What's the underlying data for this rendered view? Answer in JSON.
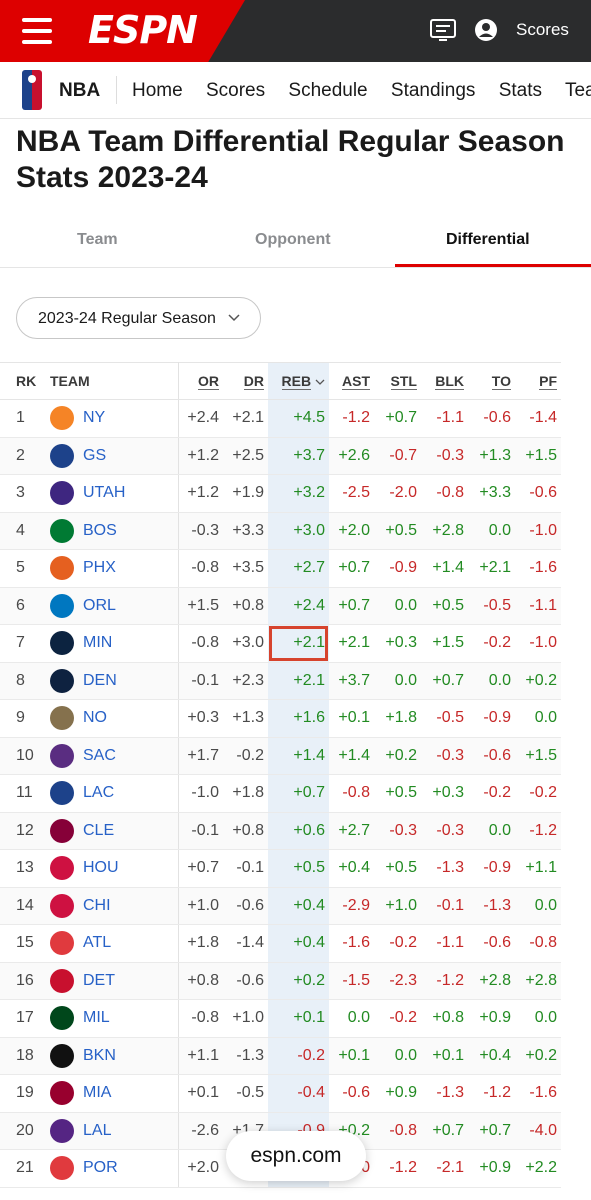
{
  "header": {
    "logo_text": "ESPN",
    "scores_label": "Scores"
  },
  "nav": {
    "league_label": "NBA",
    "items": [
      "Home",
      "Scores",
      "Schedule",
      "Standings",
      "Stats",
      "Tea"
    ]
  },
  "page_title": "NBA Team Differential Regular Season Stats 2023-24",
  "tabs": {
    "team": "Team",
    "opponent": "Opponent",
    "differential": "Differential",
    "active": "Differential"
  },
  "season_select": {
    "value": "2023-24 Regular Season"
  },
  "table": {
    "columns": [
      "RK",
      "TEAM",
      "OR",
      "DR",
      "REB",
      "AST",
      "STL",
      "BLK",
      "TO",
      "PF"
    ],
    "sorted_column": "REB",
    "rows": [
      {
        "rk": "1",
        "team": "NY",
        "logo": "#f58426",
        "vals": [
          "+2.4",
          "+2.1",
          "+4.5",
          "-1.2",
          "+0.7",
          "-1.1",
          "-0.6",
          "-1.4"
        ]
      },
      {
        "rk": "2",
        "team": "GS",
        "logo": "#1d428a",
        "vals": [
          "+1.2",
          "+2.5",
          "+3.7",
          "+2.6",
          "-0.7",
          "-0.3",
          "+1.3",
          "+1.5"
        ]
      },
      {
        "rk": "3",
        "team": "UTAH",
        "logo": "#3e2680",
        "vals": [
          "+1.2",
          "+1.9",
          "+3.2",
          "-2.5",
          "-2.0",
          "-0.8",
          "+3.3",
          "-0.6"
        ]
      },
      {
        "rk": "4",
        "team": "BOS",
        "logo": "#007a33",
        "vals": [
          "-0.3",
          "+3.3",
          "+3.0",
          "+2.0",
          "+0.5",
          "+2.8",
          "0.0",
          "-1.0"
        ]
      },
      {
        "rk": "5",
        "team": "PHX",
        "logo": "#e56020",
        "vals": [
          "-0.8",
          "+3.5",
          "+2.7",
          "+0.7",
          "-0.9",
          "+1.4",
          "+2.1",
          "-1.6"
        ]
      },
      {
        "rk": "6",
        "team": "ORL",
        "logo": "#0077c0",
        "vals": [
          "+1.5",
          "+0.8",
          "+2.4",
          "+0.7",
          "0.0",
          "+0.5",
          "-0.5",
          "-1.1"
        ]
      },
      {
        "rk": "7",
        "team": "MIN",
        "logo": "#0c2340",
        "vals": [
          "-0.8",
          "+3.0",
          "+2.1",
          "+2.1",
          "+0.3",
          "+1.5",
          "-0.2",
          "-1.0"
        ]
      },
      {
        "rk": "8",
        "team": "DEN",
        "logo": "#0e2240",
        "vals": [
          "-0.1",
          "+2.3",
          "+2.1",
          "+3.7",
          "0.0",
          "+0.7",
          "0.0",
          "+0.2"
        ]
      },
      {
        "rk": "9",
        "team": "NO",
        "logo": "#85714d",
        "vals": [
          "+0.3",
          "+1.3",
          "+1.6",
          "+0.1",
          "+1.8",
          "-0.5",
          "-0.9",
          "0.0"
        ]
      },
      {
        "rk": "10",
        "team": "SAC",
        "logo": "#5a2d81",
        "vals": [
          "+1.7",
          "-0.2",
          "+1.4",
          "+1.4",
          "+0.2",
          "-0.3",
          "-0.6",
          "+1.5"
        ]
      },
      {
        "rk": "11",
        "team": "LAC",
        "logo": "#1d428a",
        "vals": [
          "-1.0",
          "+1.8",
          "+0.7",
          "-0.8",
          "+0.5",
          "+0.3",
          "-0.2",
          "-0.2"
        ]
      },
      {
        "rk": "12",
        "team": "CLE",
        "logo": "#860038",
        "vals": [
          "-0.1",
          "+0.8",
          "+0.6",
          "+2.7",
          "-0.3",
          "-0.3",
          "0.0",
          "-1.2"
        ]
      },
      {
        "rk": "13",
        "team": "HOU",
        "logo": "#ce1141",
        "vals": [
          "+0.7",
          "-0.1",
          "+0.5",
          "+0.4",
          "+0.5",
          "-1.3",
          "-0.9",
          "+1.1"
        ]
      },
      {
        "rk": "14",
        "team": "CHI",
        "logo": "#ce1141",
        "vals": [
          "+1.0",
          "-0.6",
          "+0.4",
          "-2.9",
          "+1.0",
          "-0.1",
          "-1.3",
          "0.0"
        ]
      },
      {
        "rk": "15",
        "team": "ATL",
        "logo": "#e03a3e",
        "vals": [
          "+1.8",
          "-1.4",
          "+0.4",
          "-1.6",
          "-0.2",
          "-1.1",
          "-0.6",
          "-0.8"
        ]
      },
      {
        "rk": "16",
        "team": "DET",
        "logo": "#c8102e",
        "vals": [
          "+0.8",
          "-0.6",
          "+0.2",
          "-1.5",
          "-2.3",
          "-1.2",
          "+2.8",
          "+2.8"
        ]
      },
      {
        "rk": "17",
        "team": "MIL",
        "logo": "#00471b",
        "vals": [
          "-0.8",
          "+1.0",
          "+0.1",
          "0.0",
          "-0.2",
          "+0.8",
          "+0.9",
          "0.0"
        ]
      },
      {
        "rk": "18",
        "team": "BKN",
        "logo": "#111111",
        "vals": [
          "+1.1",
          "-1.3",
          "-0.2",
          "+0.1",
          "0.0",
          "+0.1",
          "+0.4",
          "+0.2"
        ]
      },
      {
        "rk": "19",
        "team": "MIA",
        "logo": "#98002e",
        "vals": [
          "+0.1",
          "-0.5",
          "-0.4",
          "-0.6",
          "+0.9",
          "-1.3",
          "-1.2",
          "-1.6"
        ]
      },
      {
        "rk": "20",
        "team": "LAL",
        "logo": "#552583",
        "vals": [
          "-2.6",
          "+1.7",
          "-0.9",
          "+0.2",
          "-0.8",
          "+0.7",
          "+0.7",
          "-4.0"
        ]
      },
      {
        "rk": "21",
        "team": "POR",
        "logo": "#e03a3e",
        "vals": [
          "+2.0",
          "-2.0",
          "-0.0",
          "-1.0",
          "-1.2",
          "-2.1",
          "+0.9",
          "+2.2"
        ]
      }
    ]
  },
  "highlighted_cell": {
    "row": 7,
    "column": "REB"
  },
  "footer_pill": "espn.com",
  "colors": {
    "espn_red": "#dd0000",
    "positive": "#228b22",
    "negative": "#c62828",
    "sorted_bg": "#e8f0f8"
  }
}
